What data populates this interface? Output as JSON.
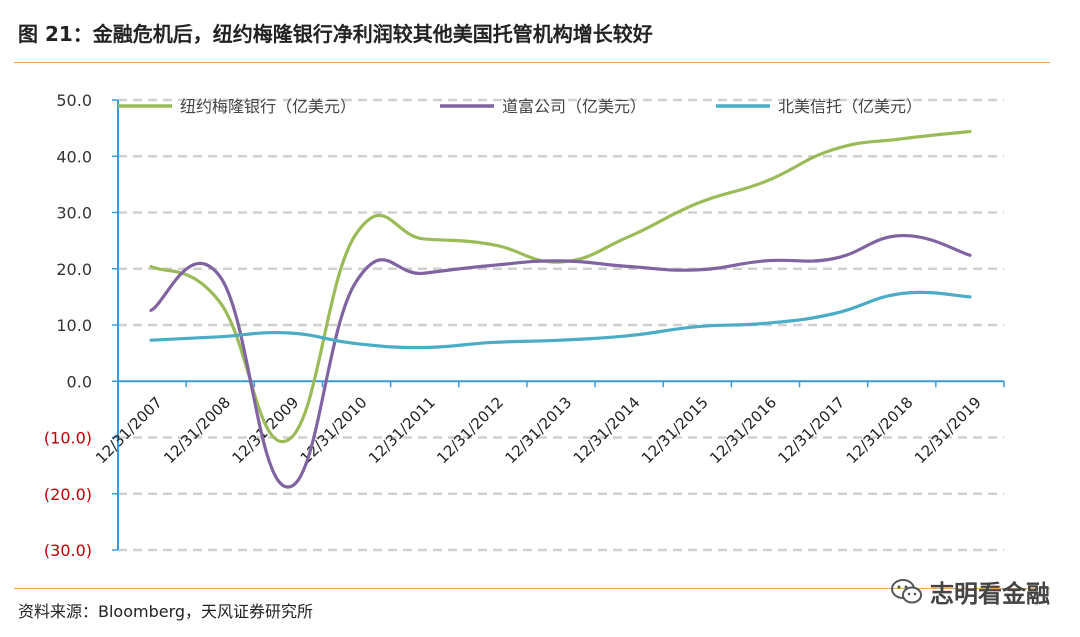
{
  "header": {
    "title": "图 21：金融危机后，纽约梅隆银行净利润较其他美国托管机构增长较好"
  },
  "footer": {
    "source": "资料来源：Bloomberg，天风证券研究所",
    "watermark": "志明看金融"
  },
  "chart_data": {
    "type": "line",
    "title": "图 21：金融危机后，纽约梅隆银行净利润较其他美国托管机构增长较好",
    "xlabel": "",
    "ylabel": "",
    "ylim": [
      -30,
      50
    ],
    "yticks": [
      50,
      40,
      30,
      20,
      10,
      0,
      -10,
      -20,
      -30
    ],
    "ytick_labels": [
      "50.0",
      "40.0",
      "30.0",
      "20.0",
      "10.0",
      "0.0",
      "(10.0)",
      "(20.0)",
      "(30.0)"
    ],
    "categories": [
      "12/31/2007",
      "12/31/2008",
      "12/31/2009",
      "12/31/2010",
      "12/31/2011",
      "12/31/2012",
      "12/31/2013",
      "12/31/2014",
      "12/31/2015",
      "12/31/2016",
      "12/31/2017",
      "12/31/2018",
      "12/31/2019"
    ],
    "legend_position": "top",
    "grid": "horizontal-dashed",
    "series": [
      {
        "name": "纽约梅隆银行（亿美元）",
        "color": "#9bbb59",
        "values": [
          20.4,
          14.2,
          -10.5,
          26.1,
          25.3,
          24.3,
          21.2,
          25.7,
          31.6,
          35.5,
          41.2,
          43.1,
          44.4
        ]
      },
      {
        "name": "道富公司（亿美元）",
        "color": "#8064a2",
        "values": [
          12.6,
          18.8,
          -18.8,
          17.6,
          19.2,
          20.6,
          21.4,
          20.4,
          19.8,
          21.4,
          21.8,
          25.9,
          22.4
        ]
      },
      {
        "name": "北美信托（亿美元）",
        "color": "#4bacc6",
        "values": [
          7.3,
          7.9,
          8.6,
          6.7,
          6.0,
          6.9,
          7.3,
          8.1,
          9.7,
          10.3,
          12.0,
          15.6,
          15.0
        ]
      }
    ],
    "colors": {
      "axis": "#3a9ad9",
      "grid": "#d0d0d0",
      "negative_label": "#c00000",
      "positive_label": "#333333"
    }
  }
}
